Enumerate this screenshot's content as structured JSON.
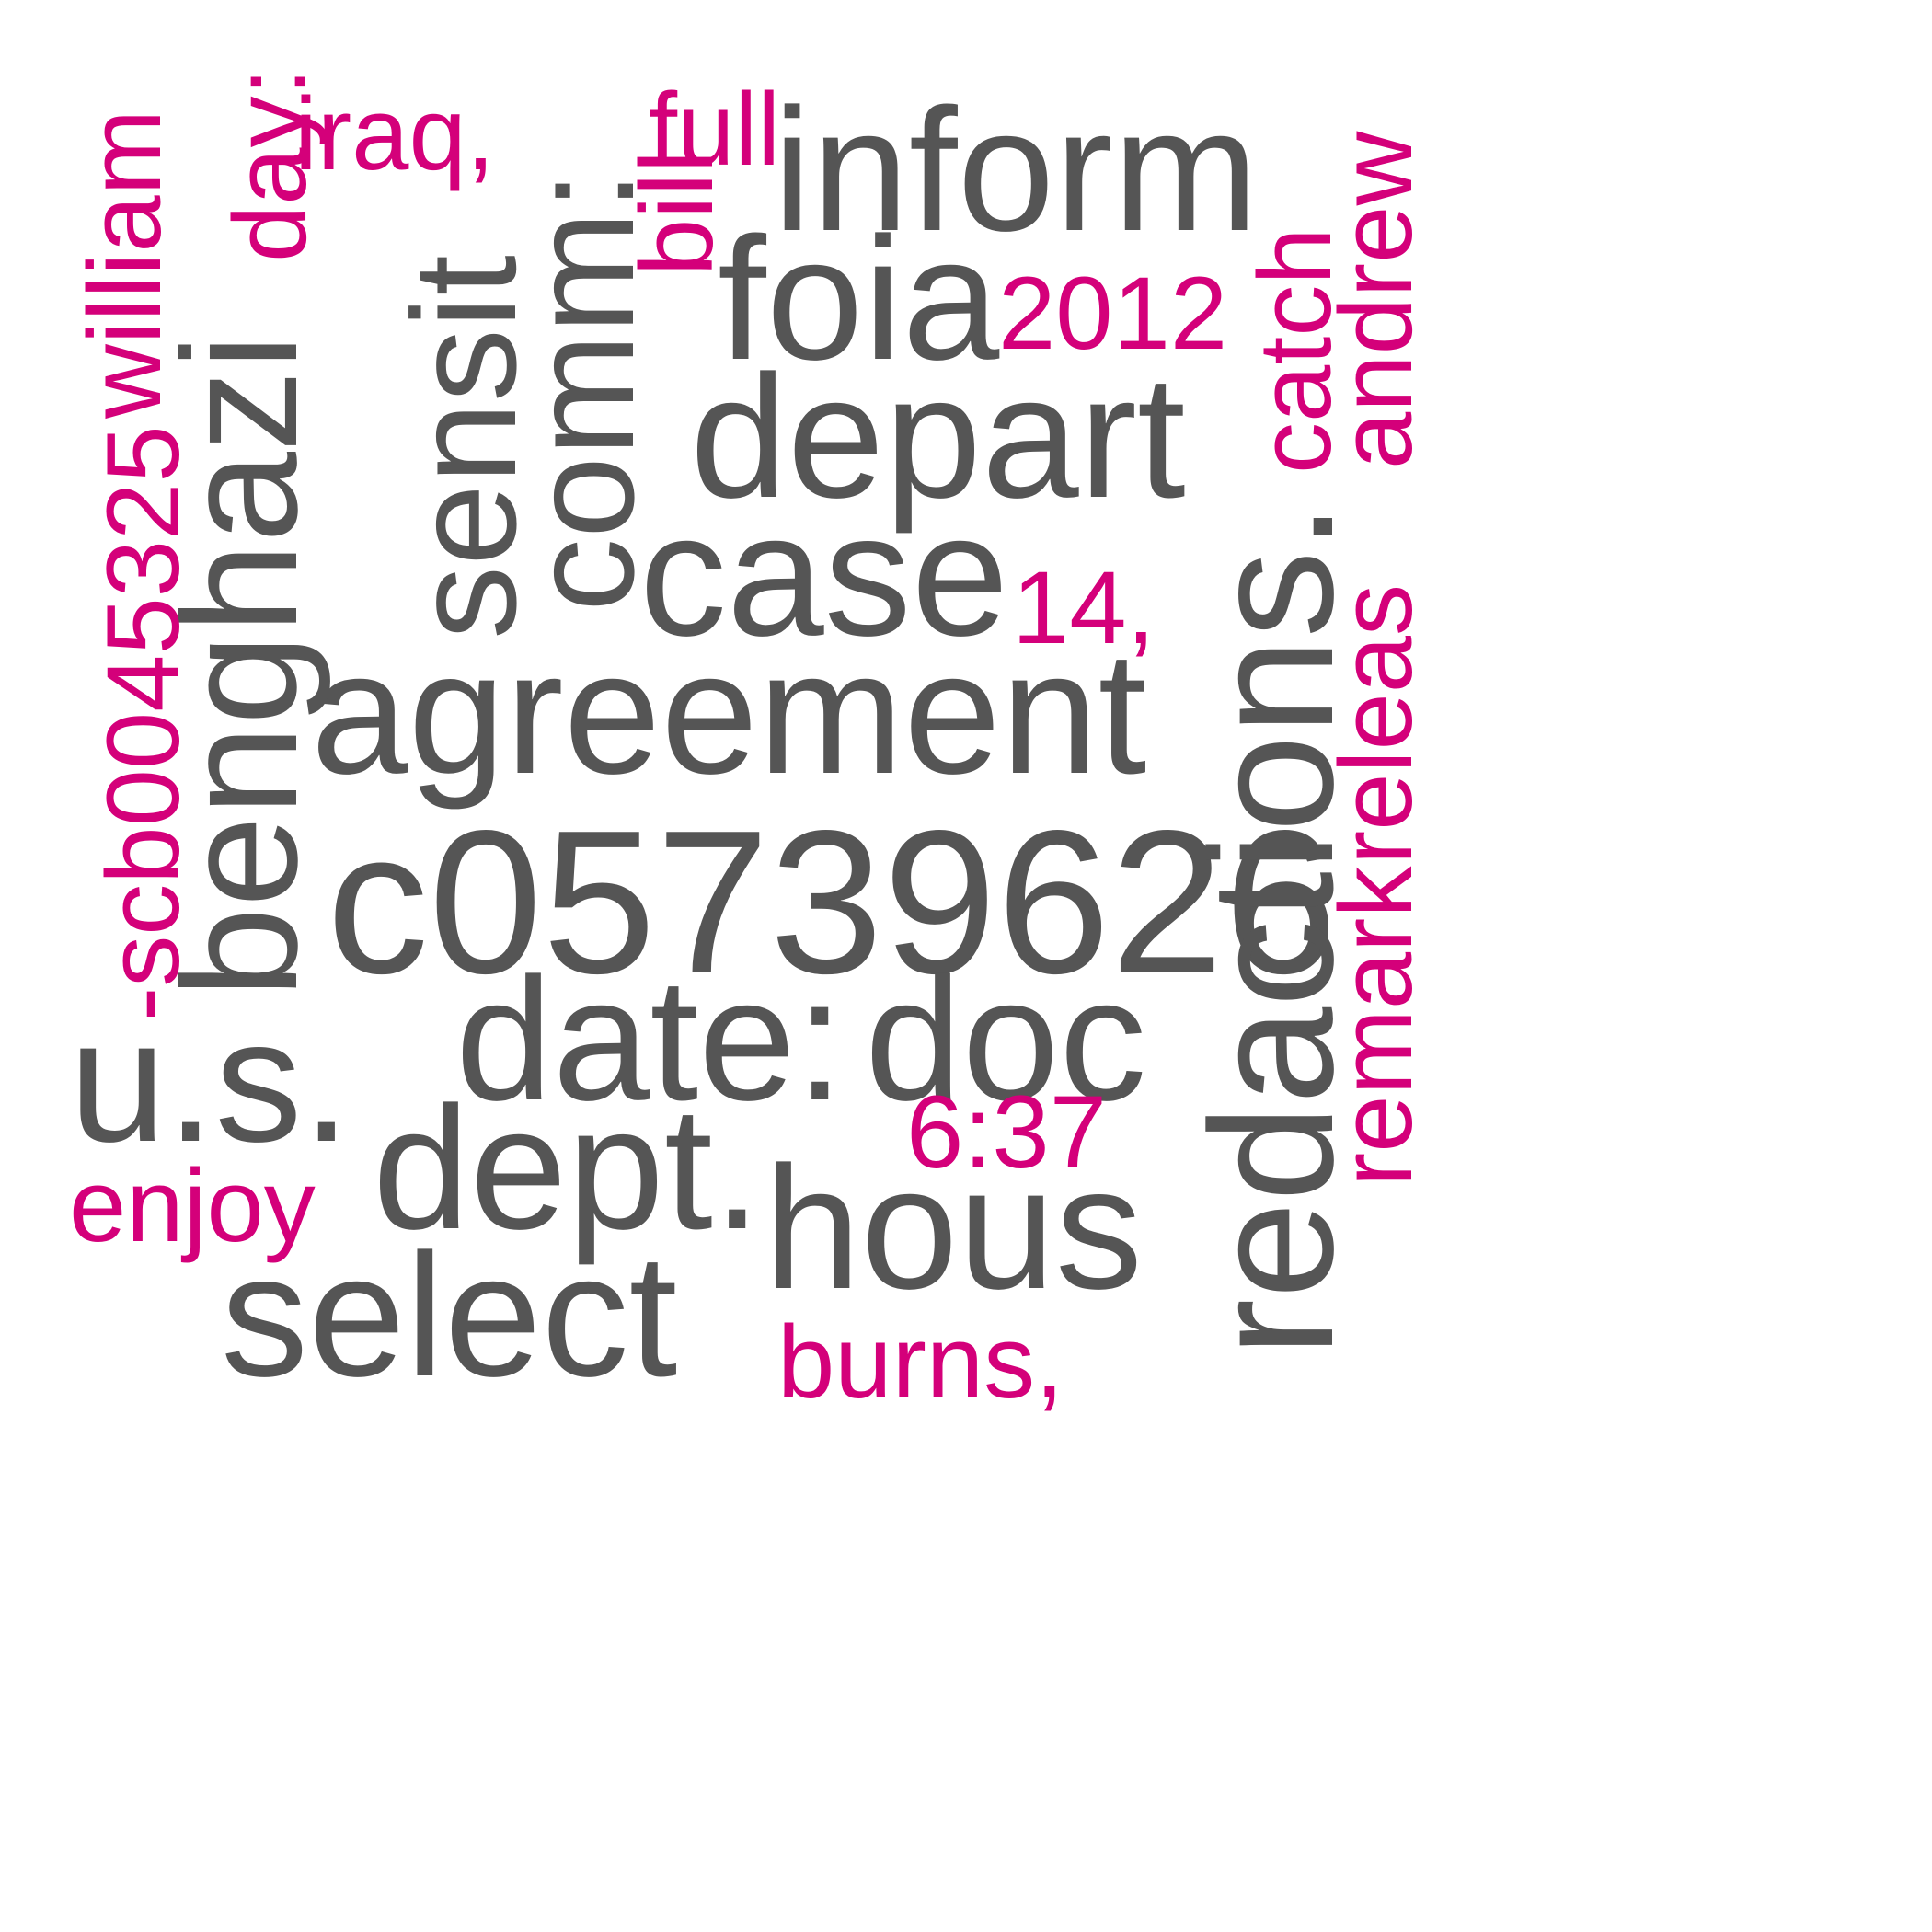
{
  "colors": {
    "background": "#ffffff",
    "primary_text": "#555555",
    "accent_text": "#d4007a"
  },
  "words": {
    "agreement": "agreement",
    "c05739626": "c05739626",
    "date": "date:",
    "doc": "doc",
    "benghazi": "benghazi",
    "redactions": "redactions.",
    "inform": "inform",
    "depart": "depart",
    "case": "case",
    "comm": "comm:",
    "sensit": "sensit",
    "dept": "dept.",
    "hous": "hous",
    "us": "u.s.",
    "select": "select",
    "foia": "foia",
    "william": "william",
    "scb": "-scb0045325",
    "day": "day:",
    "iraq": "iraq,",
    "full": "full",
    "bill": "bill",
    "y2012": "2012",
    "catch": "catch",
    "andrew": "andrew",
    "n14": "14,",
    "releas": "releas",
    "remark": "remark",
    "t637": "6:37",
    "enjoy": "enjoy",
    "burns": "burns,"
  }
}
